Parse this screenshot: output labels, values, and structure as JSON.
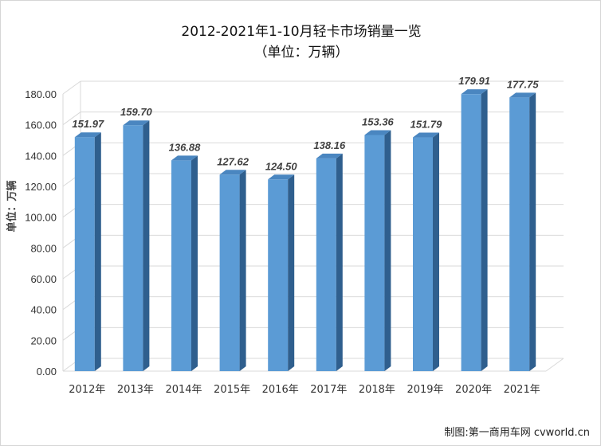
{
  "chart_data": {
    "type": "bar",
    "title": "2012-2021年1-10月轻卡市场销量一览",
    "subtitle": "（单位：万辆）",
    "ylabel": "单位：万辆",
    "xlabel": "",
    "categories": [
      "2012年",
      "2013年",
      "2014年",
      "2015年",
      "2016年",
      "2017年",
      "2018年",
      "2019年",
      "2020年",
      "2021年"
    ],
    "values": [
      151.97,
      159.7,
      136.88,
      127.62,
      124.5,
      138.16,
      153.36,
      151.79,
      179.91,
      177.75
    ],
    "data_labels": [
      "151.97",
      "159.70",
      "136.88",
      "127.62",
      "124.50",
      "138.16",
      "153.36",
      "151.79",
      "179.91",
      "177.75"
    ],
    "yticks": [
      "0.00",
      "20.00",
      "40.00",
      "60.00",
      "80.00",
      "100.00",
      "120.00",
      "140.00",
      "160.00",
      "180.00"
    ],
    "ylim": [
      0,
      180
    ],
    "grid": true,
    "legend": "none",
    "colors": {
      "bar": "#5b9bd5",
      "bar_top": "#4a86c0",
      "bar_side": "#2f5f8e",
      "grid": "#d9d9d9"
    }
  },
  "credit": "制图:第一商用车网 cvworld.cn"
}
